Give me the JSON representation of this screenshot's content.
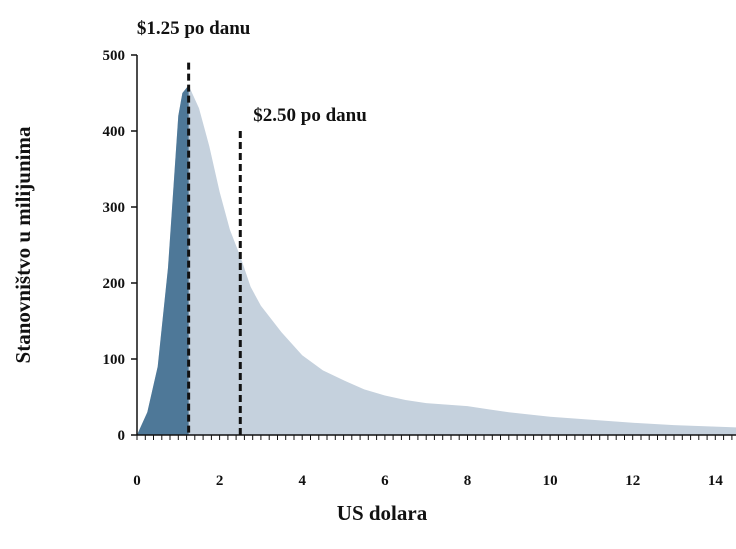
{
  "chart_data": {
    "type": "area",
    "title": "",
    "xlabel": "US dolara",
    "ylabel": "Stanovništvo u milijunima",
    "xlim": [
      0,
      14.5
    ],
    "ylim": [
      0,
      500
    ],
    "x_ticks": [
      0,
      2,
      4,
      6,
      8,
      10,
      12,
      14
    ],
    "y_ticks": [
      0,
      100,
      200,
      300,
      400,
      500
    ],
    "grid": false,
    "series": [
      {
        "x": [
          0,
          0.25,
          0.5,
          0.75,
          1.0,
          1.1,
          1.25,
          1.5,
          1.75,
          2.0,
          2.25,
          2.5,
          2.75,
          3.0,
          3.5,
          4.0,
          4.5,
          5.0,
          5.5,
          6.0,
          6.5,
          7.0,
          7.5,
          8.0,
          8.5,
          9.0,
          9.5,
          10.0,
          11.0,
          12.0,
          13.0,
          14.0,
          14.5
        ],
        "values": [
          0,
          30,
          90,
          220,
          420,
          450,
          460,
          430,
          380,
          320,
          270,
          235,
          195,
          170,
          135,
          105,
          85,
          72,
          60,
          52,
          46,
          42,
          40,
          38,
          34,
          30,
          27,
          24,
          20,
          16,
          13,
          11,
          10
        ]
      }
    ],
    "fill_colors": {
      "below_1_25": "#4e7898",
      "above_1_25": "#c5d1dd"
    },
    "annotations": [
      {
        "label": "$1.25 po danu",
        "x": 1.25,
        "line_top": 490
      },
      {
        "label": "$2.50 po danu",
        "x": 2.5,
        "line_top": 400
      }
    ]
  }
}
